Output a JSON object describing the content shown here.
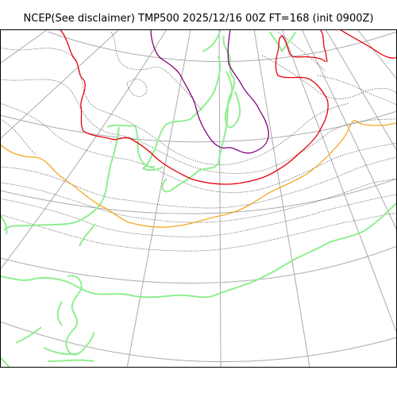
{
  "title": "NCEP(See disclaimer) TMP500 2025/12/16 00Z FT=168 (init 0900Z)",
  "colors": {
    "background": "#ffffff",
    "frame": "#000000",
    "graticule": "#aaaaaa",
    "coastline": "#90ee90",
    "temperature_contour": "#555555",
    "isotherm_orange": "#f5a623",
    "isotherm_red": "#e8000b",
    "isotherm_purple": "#800080"
  }
}
